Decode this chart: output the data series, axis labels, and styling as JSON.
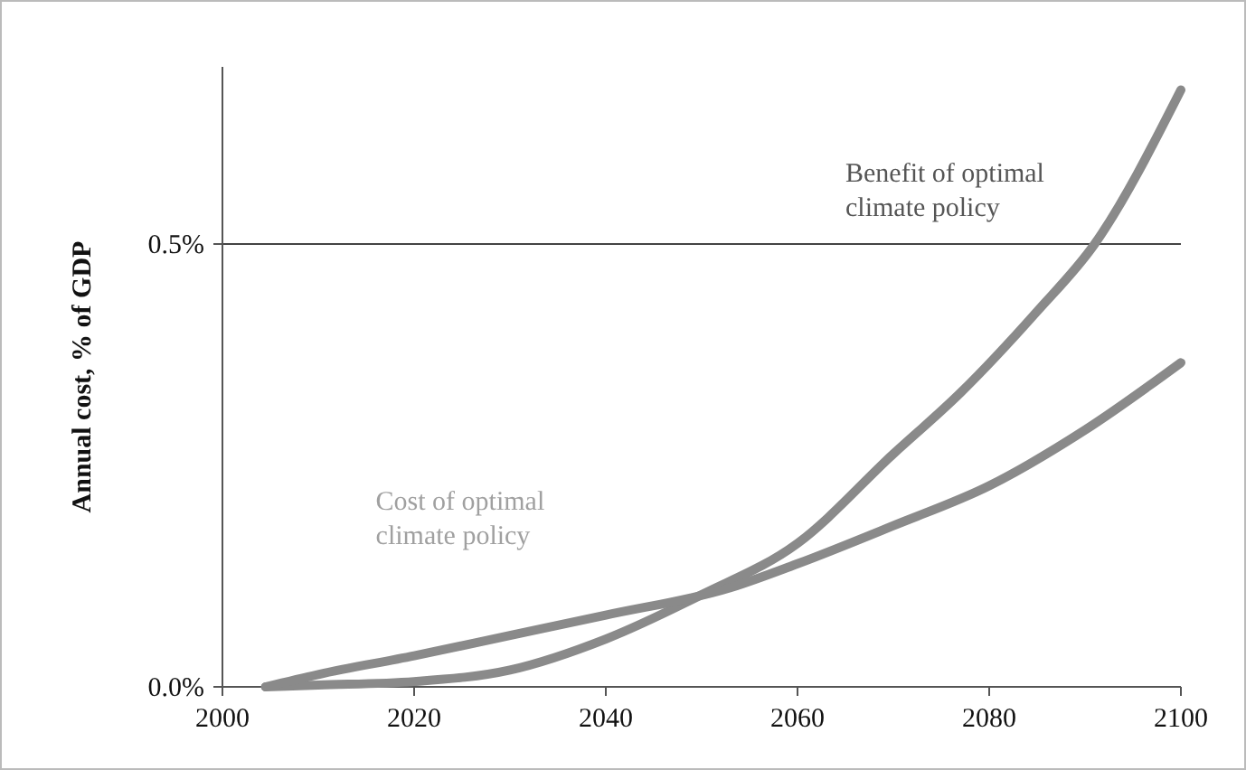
{
  "chart_data": {
    "type": "line",
    "ylabel": "Annual cost, % of GDP",
    "xlim": [
      2000,
      2100
    ],
    "xticks": [
      2000,
      2020,
      2040,
      2060,
      2080,
      2100
    ],
    "ylim": [
      0,
      0.7
    ],
    "yticks": [
      {
        "value": 0,
        "label": "0.0%"
      },
      {
        "value": 0.5,
        "label": "0.5%"
      }
    ],
    "grid": "y",
    "marker": "none",
    "line_style": "solid",
    "series": [
      {
        "name": "Benefit of optimal climate policy",
        "color": "#8a8a8a",
        "x": [
          2004.5,
          2010,
          2020,
          2030,
          2040,
          2050,
          2060,
          2070,
          2077,
          2085,
          2091,
          2100
        ],
        "values": [
          0,
          0.002,
          0.006,
          0.019,
          0.054,
          0.104,
          0.162,
          0.263,
          0.332,
          0.424,
          0.5,
          0.674
        ]
      },
      {
        "name": "Cost of optimal climate policy",
        "color": "#8a8a8a",
        "x": [
          2004.5,
          2010,
          2020,
          2030,
          2040,
          2053,
          2060,
          2070,
          2080,
          2090,
          2100
        ],
        "values": [
          0,
          0.014,
          0.035,
          0.058,
          0.081,
          0.112,
          0.139,
          0.182,
          0.227,
          0.29,
          0.366
        ]
      }
    ]
  }
}
